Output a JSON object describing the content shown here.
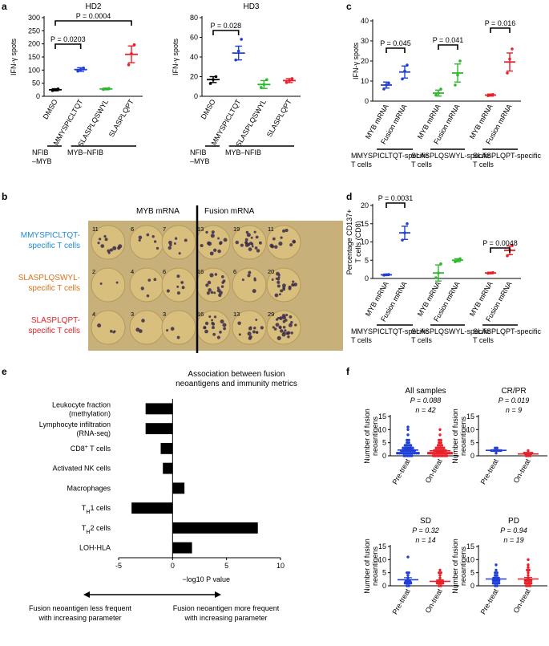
{
  "panels": {
    "a": {
      "label": "a"
    },
    "b": {
      "label": "b"
    },
    "c": {
      "label": "c"
    },
    "d": {
      "label": "d"
    },
    "e": {
      "label": "e"
    },
    "f": {
      "label": "f"
    }
  },
  "chart_data": [
    {
      "id": "a1",
      "type": "scatter",
      "title": "HD2",
      "ylabel": "IFN-γ spots",
      "ylim": [
        0,
        300
      ],
      "yticks": [
        0,
        50,
        100,
        150,
        200,
        250,
        300
      ],
      "categories": [
        "DMSO",
        "MMYSPICLTQT",
        "SLASPLQSWYL",
        "SLASPLQPT"
      ],
      "colors": [
        "#000000",
        "#1f3fd6",
        "#2db82d",
        "#e8202a"
      ],
      "means": [
        25,
        102,
        28,
        160
      ],
      "errs": [
        4,
        7,
        3,
        32
      ],
      "points": [
        [
          22,
          25,
          28
        ],
        [
          96,
          102,
          108
        ],
        [
          26,
          28,
          30
        ],
        [
          120,
          163,
          197
        ]
      ],
      "pvalues": [
        {
          "text": "P = 0.0203"
        },
        {
          "text": "P = 0.0004"
        }
      ],
      "groups": [
        {
          "text": "NFIB –MYB"
        },
        {
          "text": "MYB–NFIB"
        }
      ]
    },
    {
      "id": "a2",
      "type": "scatter",
      "title": "HD3",
      "ylabel": "IFN-γ spots",
      "ylim": [
        0,
        80
      ],
      "yticks": [
        0,
        20,
        40,
        60,
        80
      ],
      "categories": [
        "DMSO",
        "MMYSPICLTQT",
        "SLASPLQSWYL",
        "SLASPLQPT"
      ],
      "colors": [
        "#000000",
        "#1f3fd6",
        "#2db82d",
        "#e8202a"
      ],
      "means": [
        17,
        44,
        12,
        16
      ],
      "errs": [
        3,
        7,
        4,
        2
      ],
      "points": [
        [
          13,
          17,
          20
        ],
        [
          37,
          46,
          58
        ],
        [
          9,
          12,
          17
        ],
        [
          14,
          16,
          18
        ]
      ],
      "pvalues": [
        {
          "text": "P = 0.028"
        }
      ],
      "groups": [
        {
          "text": "NFIB –MYB"
        },
        {
          "text": "MYB–NFIB"
        }
      ]
    },
    {
      "id": "c",
      "type": "scatter",
      "ylabel": "IFN-γ spots",
      "ylim": [
        0,
        40
      ],
      "yticks": [
        0,
        10,
        20,
        30,
        40
      ],
      "categories": [
        "MYB mRNA",
        "Fusion mRNA",
        "MYB mRNA",
        "Fusion mRNA",
        "MYB mRNA",
        "Fusion mRNA"
      ],
      "colors": [
        "#1f3fd6",
        "#1f3fd6",
        "#2db82d",
        "#2db82d",
        "#e8202a",
        "#e8202a"
      ],
      "means": [
        8,
        14.5,
        4,
        14,
        3,
        19.5
      ],
      "errs": [
        1.5,
        3,
        1.5,
        4.5,
        0.5,
        4.5
      ],
      "points": [
        [
          6,
          8,
          9
        ],
        [
          11,
          15,
          18
        ],
        [
          3,
          4,
          6
        ],
        [
          8,
          13,
          20
        ],
        [
          2.7,
          3,
          3.3
        ],
        [
          14,
          21,
          26
        ]
      ],
      "pvalues": [
        {
          "text": "P = 0.045"
        },
        {
          "text": "P = 0.041"
        },
        {
          "text": "P = 0.016"
        }
      ],
      "groups": [
        {
          "text": "MMYSPICLTQT-specific T cells"
        },
        {
          "text": "SLASPLQSWYL-specific T cells"
        },
        {
          "text": "SLASPLQPT-specific T cells"
        }
      ]
    },
    {
      "id": "d",
      "type": "scatter",
      "ylabel": "Percentage CD137+ T cells (CD8)",
      "ylim": [
        0,
        20
      ],
      "yticks": [
        0,
        5,
        10,
        15,
        20
      ],
      "categories": [
        "MYB mRNA",
        "Fusion mRNA",
        "MYB mRNA",
        "Fusion mRNA",
        "MYB mRNA",
        "Fusion mRNA"
      ],
      "colors": [
        "#1f3fd6",
        "#1f3fd6",
        "#2db82d",
        "#2db82d",
        "#e8202a",
        "#e8202a"
      ],
      "means": [
        1,
        12.5,
        1.5,
        5,
        1.5,
        7.7
      ],
      "errs": [
        0.2,
        1.8,
        2.2,
        0.4,
        0.2,
        1.2
      ],
      "points": [
        [
          0.9,
          1,
          1.1
        ],
        [
          10.5,
          12.5,
          15
        ],
        [
          0.2,
          1.5,
          4
        ],
        [
          4.6,
          5,
          5.4
        ],
        [
          1.4,
          1.5,
          1.6
        ],
        [
          6.2,
          7.8,
          9
        ]
      ],
      "pvalues": [
        {
          "text": "P = 0.0031"
        },
        {
          "text": "P = 0.0048"
        }
      ],
      "groups": [
        {
          "text": "MMYSPICLTQT-specific T cells"
        },
        {
          "text": "SLASPLQSWYL-specific T cells"
        },
        {
          "text": "SLASPLQPT-specific T cells"
        }
      ]
    },
    {
      "id": "e",
      "type": "bar",
      "orientation": "horizontal",
      "title": "Association between fusion neoantigens and immunity metrics",
      "xlabel": "−log10 P value",
      "xlim": [
        -5,
        10
      ],
      "xticks": [
        -5,
        0,
        5,
        10
      ],
      "categories": [
        "Leukocyte fraction (methylation)",
        "Lymphocyte infiltration (RNA-seq)",
        "CD8+ T cells",
        "Activated NK cells",
        "Macrophages",
        "TH1 cells",
        "TH2 cells",
        "LOH-HLA"
      ],
      "values": [
        -2.5,
        -2.5,
        -1.1,
        -0.9,
        1.1,
        -3.8,
        7.9,
        1.8
      ],
      "left_note": "Fusion neoantigen less frequent with increasing parameter",
      "right_note": "Fusion neoantigen more frequent with increasing parameter"
    },
    {
      "id": "f1",
      "type": "scatter",
      "title": "All samples",
      "pvalue": "P = 0.088",
      "n": "n = 42",
      "ylabel": "Number of fusion neoantigens",
      "ylim": [
        0,
        15
      ],
      "yticks": [
        0,
        5,
        10,
        15
      ],
      "categories": [
        "Pre-treat",
        "On-treat"
      ],
      "colors": [
        "#1f3fd6",
        "#e8202a"
      ],
      "means": [
        2.2,
        1.9
      ],
      "errs": [
        0.4,
        0.35
      ],
      "points": [
        [
          0,
          0,
          0,
          0,
          0,
          1,
          1,
          1,
          1,
          1,
          1,
          1,
          1,
          1,
          1,
          1,
          1,
          2,
          2,
          2,
          2,
          2,
          2,
          2,
          2,
          3,
          3,
          3,
          3,
          3,
          3,
          4,
          4,
          4,
          4,
          5,
          5,
          6,
          6,
          8,
          10,
          11
        ],
        [
          0,
          0,
          0,
          0,
          0,
          0,
          0,
          0,
          1,
          1,
          1,
          1,
          1,
          1,
          1,
          1,
          1,
          1,
          1,
          1,
          1,
          2,
          2,
          2,
          2,
          2,
          2,
          2,
          3,
          3,
          3,
          3,
          3,
          4,
          4,
          4,
          5,
          5,
          6,
          6,
          8,
          10
        ]
      ]
    },
    {
      "id": "f2",
      "type": "scatter",
      "title": "CR/PR",
      "pvalue": "P = 0.019",
      "n": "n = 9",
      "ylabel": "Number of fusion neoantigens",
      "ylim": [
        0,
        15
      ],
      "yticks": [
        0,
        5,
        10,
        15
      ],
      "categories": [
        "Pre-treat",
        "On-treat"
      ],
      "colors": [
        "#1f3fd6",
        "#e8202a"
      ],
      "means": [
        2.1,
        0.7
      ],
      "errs": [
        0.2,
        0.2
      ],
      "points": [
        [
          1,
          2,
          2,
          2,
          2,
          2,
          2,
          3,
          3
        ],
        [
          0,
          0,
          0,
          1,
          1,
          1,
          1,
          1,
          2
        ]
      ]
    },
    {
      "id": "f3",
      "type": "scatter",
      "title": "SD",
      "pvalue": "P = 0.32",
      "n": "n = 14",
      "ylabel": "Number of fusion neoantigens",
      "ylim": [
        0,
        15
      ],
      "yticks": [
        0,
        5,
        10,
        15
      ],
      "categories": [
        "Pre-treat",
        "On-treat"
      ],
      "colors": [
        "#1f3fd6",
        "#e8202a"
      ],
      "means": [
        2.3,
        1.7
      ],
      "errs": [
        0.8,
        0.5
      ],
      "points": [
        [
          0,
          0,
          1,
          1,
          1,
          1,
          2,
          2,
          2,
          3,
          4,
          5,
          5,
          11
        ],
        [
          0,
          0,
          1,
          1,
          1,
          1,
          2,
          2,
          2,
          3,
          4,
          5,
          5,
          6
        ]
      ]
    },
    {
      "id": "f4",
      "type": "scatter",
      "title": "PD",
      "pvalue": "P = 0.94",
      "n": "n = 19",
      "ylabel": "Number of fusion neoantigens",
      "ylim": [
        0,
        15
      ],
      "yticks": [
        0,
        5,
        10,
        15
      ],
      "categories": [
        "Pre-treat",
        "On-treat"
      ],
      "colors": [
        "#1f3fd6",
        "#e8202a"
      ],
      "means": [
        2.6,
        2.6
      ],
      "errs": [
        0.5,
        0.6
      ],
      "points": [
        [
          0,
          0,
          1,
          1,
          1,
          1,
          2,
          2,
          2,
          2,
          3,
          3,
          3,
          4,
          4,
          5,
          5,
          6,
          8
        ],
        [
          0,
          0,
          0,
          1,
          1,
          1,
          1,
          2,
          2,
          2,
          2,
          3,
          4,
          5,
          6,
          6,
          7,
          8,
          10
        ]
      ]
    }
  ],
  "plate": {
    "header_left": "MYB mRNA",
    "header_right": "Fusion mRNA",
    "rows": [
      {
        "label": "MMYSPICLTQT-\nspecific T cells",
        "color": "#1e8ad6",
        "counts": [
          "11",
          "6",
          "7",
          "13",
          "19",
          "11"
        ]
      },
      {
        "label": "SLASPLQSWYL-\nspecific T cells",
        "color": "#d9731a",
        "counts": [
          "2",
          "4",
          "6",
          "16",
          "6",
          "20"
        ]
      },
      {
        "label": "SLASPLQPT-\nspecific T cells",
        "color": "#e8202a",
        "counts": [
          "4",
          "3",
          "3",
          "16",
          "13",
          "29"
        ]
      }
    ]
  }
}
